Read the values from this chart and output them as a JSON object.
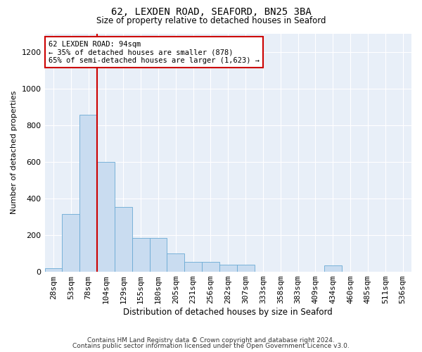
{
  "title": "62, LEXDEN ROAD, SEAFORD, BN25 3BA",
  "subtitle": "Size of property relative to detached houses in Seaford",
  "xlabel": "Distribution of detached houses by size in Seaford",
  "ylabel": "Number of detached properties",
  "categories": [
    "28sqm",
    "53sqm",
    "78sqm",
    "104sqm",
    "129sqm",
    "155sqm",
    "180sqm",
    "205sqm",
    "231sqm",
    "256sqm",
    "282sqm",
    "307sqm",
    "333sqm",
    "358sqm",
    "383sqm",
    "409sqm",
    "434sqm",
    "460sqm",
    "485sqm",
    "511sqm",
    "536sqm"
  ],
  "values": [
    20,
    315,
    855,
    600,
    355,
    185,
    185,
    100,
    55,
    55,
    40,
    40,
    0,
    0,
    0,
    0,
    35,
    0,
    0,
    0,
    0
  ],
  "bar_color": "#c9dcf0",
  "bar_edge_color": "#6aaad4",
  "vline_x_index": 2.5,
  "vline_color": "#cc0000",
  "annotation_text": "62 LEXDEN ROAD: 94sqm\n← 35% of detached houses are smaller (878)\n65% of semi-detached houses are larger (1,623) →",
  "annotation_box_color": "white",
  "annotation_box_edge": "#cc0000",
  "ylim": [
    0,
    1300
  ],
  "yticks": [
    0,
    200,
    400,
    600,
    800,
    1000,
    1200
  ],
  "footer1": "Contains HM Land Registry data © Crown copyright and database right 2024.",
  "footer2": "Contains public sector information licensed under the Open Government Licence v3.0.",
  "plot_bg_color": "#e8eff8",
  "grid_color": "#ffffff"
}
